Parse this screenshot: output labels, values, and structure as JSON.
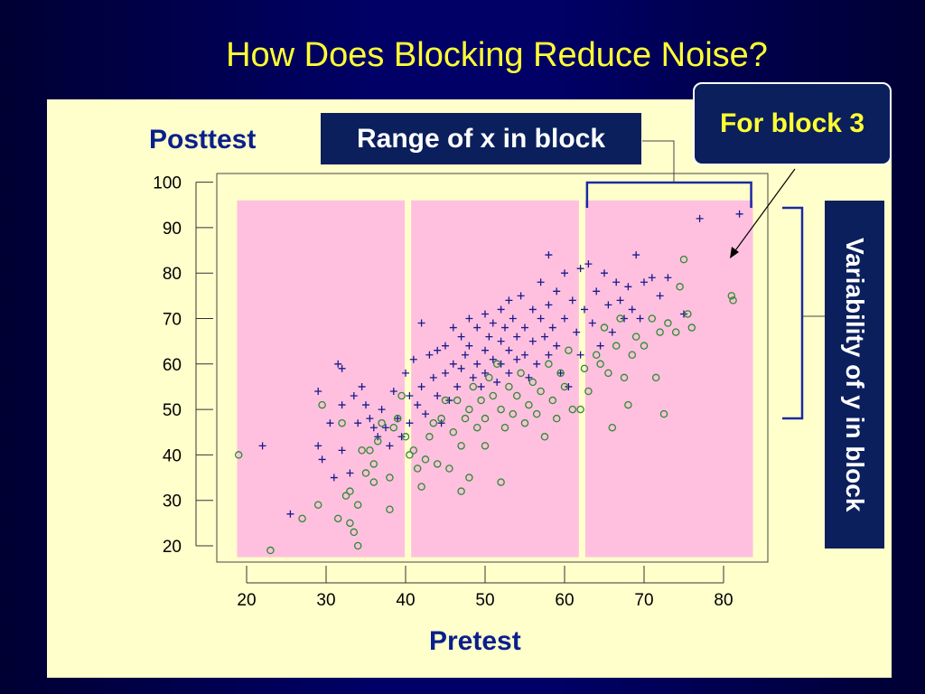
{
  "slide": {
    "title": "How Does Blocking Reduce Noise?",
    "range_label": "Range of x in block",
    "block_label": "For block 3",
    "variability_label": "Variability of y in block"
  },
  "colors": {
    "background": "#000066",
    "title": "#ffff33",
    "panel": "#ffffcc",
    "block_fill": "#ffc0e0",
    "label_box": "#0a1f5c",
    "cross_series": "#1a1a8c",
    "circle_series": "#2e8b2e"
  },
  "chart_data": {
    "type": "scatter",
    "xlabel": "Pretest",
    "ylabel": "Posttest",
    "xlim": [
      17,
      86
    ],
    "ylim": [
      17,
      100
    ],
    "xticks": [
      20,
      30,
      40,
      50,
      60,
      70,
      80
    ],
    "yticks": [
      20,
      30,
      40,
      50,
      60,
      70,
      80,
      90,
      100
    ],
    "blocks": [
      [
        18.8,
        39.9
      ],
      [
        40.7,
        61.8
      ],
      [
        62.6,
        83.7
      ]
    ],
    "block_y_range": [
      17.5,
      96
    ],
    "series": [
      {
        "marker": "cross",
        "points": [
          [
            22,
            42
          ],
          [
            25.5,
            27
          ],
          [
            29,
            54
          ],
          [
            29,
            42
          ],
          [
            29.5,
            39
          ],
          [
            30.5,
            47
          ],
          [
            31,
            35
          ],
          [
            31.5,
            60
          ],
          [
            32,
            59
          ],
          [
            32,
            51
          ],
          [
            32,
            41
          ],
          [
            33,
            36
          ],
          [
            33.5,
            53
          ],
          [
            34,
            47
          ],
          [
            34.5,
            55
          ],
          [
            35,
            51
          ],
          [
            35.5,
            48
          ],
          [
            36,
            46
          ],
          [
            36.5,
            44
          ],
          [
            37,
            50
          ],
          [
            37.5,
            46
          ],
          [
            38,
            42
          ],
          [
            38.5,
            54
          ],
          [
            39,
            48
          ],
          [
            39.5,
            44
          ],
          [
            40,
            58
          ],
          [
            40.5,
            53
          ],
          [
            40.5,
            47
          ],
          [
            41,
            61
          ],
          [
            41.5,
            51
          ],
          [
            42,
            69
          ],
          [
            42,
            55
          ],
          [
            42.5,
            49
          ],
          [
            43,
            62
          ],
          [
            43.5,
            57
          ],
          [
            44,
            63
          ],
          [
            44,
            53
          ],
          [
            44.5,
            47
          ],
          [
            45,
            64
          ],
          [
            45,
            58
          ],
          [
            45.5,
            52
          ],
          [
            46,
            68
          ],
          [
            46,
            60
          ],
          [
            46.5,
            55
          ],
          [
            47,
            66
          ],
          [
            47,
            59
          ],
          [
            47.5,
            62
          ],
          [
            48,
            70
          ],
          [
            48,
            64
          ],
          [
            48.5,
            57
          ],
          [
            49,
            68
          ],
          [
            49,
            60
          ],
          [
            49.5,
            55
          ],
          [
            50,
            71
          ],
          [
            50,
            63
          ],
          [
            50,
            58
          ],
          [
            50.5,
            66
          ],
          [
            51,
            69
          ],
          [
            51,
            61
          ],
          [
            51.5,
            56
          ],
          [
            52,
            72
          ],
          [
            52,
            65
          ],
          [
            52,
            60
          ],
          [
            52.5,
            68
          ],
          [
            53,
            74
          ],
          [
            53,
            63
          ],
          [
            53,
            58
          ],
          [
            53.5,
            70
          ],
          [
            54,
            66
          ],
          [
            54,
            61
          ],
          [
            54.5,
            75
          ],
          [
            55,
            68
          ],
          [
            55,
            62
          ],
          [
            55.5,
            57
          ],
          [
            56,
            72
          ],
          [
            56,
            65
          ],
          [
            56.5,
            60
          ],
          [
            57,
            78
          ],
          [
            57,
            70
          ],
          [
            57.5,
            66
          ],
          [
            58,
            84
          ],
          [
            58,
            73
          ],
          [
            58,
            62
          ],
          [
            58.5,
            68
          ],
          [
            59,
            76
          ],
          [
            59,
            64
          ],
          [
            59.5,
            58
          ],
          [
            60,
            80
          ],
          [
            60,
            70
          ],
          [
            60.5,
            55
          ],
          [
            61,
            74
          ],
          [
            61.5,
            67
          ],
          [
            62,
            81
          ],
          [
            62,
            62
          ],
          [
            62.5,
            72
          ],
          [
            63,
            82
          ],
          [
            63.5,
            69
          ],
          [
            64,
            76
          ],
          [
            64.5,
            64
          ],
          [
            65,
            80
          ],
          [
            65.5,
            73
          ],
          [
            66,
            67
          ],
          [
            66.5,
            78
          ],
          [
            67,
            74
          ],
          [
            67.5,
            70
          ],
          [
            68,
            77
          ],
          [
            68.5,
            72
          ],
          [
            69,
            84
          ],
          [
            69.5,
            70
          ],
          [
            70,
            78
          ],
          [
            71,
            79
          ],
          [
            72,
            75
          ],
          [
            73,
            79
          ],
          [
            75,
            71
          ],
          [
            77,
            92
          ],
          [
            82,
            93
          ]
        ]
      },
      {
        "marker": "circle",
        "points": [
          [
            19,
            40
          ],
          [
            23,
            19
          ],
          [
            27,
            26
          ],
          [
            29,
            29
          ],
          [
            29.5,
            51
          ],
          [
            31.5,
            26
          ],
          [
            32,
            47
          ],
          [
            32.5,
            31
          ],
          [
            33,
            32
          ],
          [
            33,
            25
          ],
          [
            33.5,
            23
          ],
          [
            34,
            20
          ],
          [
            34,
            29
          ],
          [
            34.5,
            41
          ],
          [
            35,
            36
          ],
          [
            35.5,
            41
          ],
          [
            36,
            34
          ],
          [
            36,
            38
          ],
          [
            36.5,
            43
          ],
          [
            37,
            47
          ],
          [
            38,
            28
          ],
          [
            38,
            35
          ],
          [
            38.5,
            46
          ],
          [
            39,
            48
          ],
          [
            39.5,
            53
          ],
          [
            40,
            44
          ],
          [
            40.5,
            40
          ],
          [
            41,
            41
          ],
          [
            41.5,
            37
          ],
          [
            42,
            33
          ],
          [
            42.5,
            39
          ],
          [
            43,
            44
          ],
          [
            43.5,
            47
          ],
          [
            44,
            38
          ],
          [
            44.5,
            48
          ],
          [
            45,
            52
          ],
          [
            45.5,
            37
          ],
          [
            46,
            45
          ],
          [
            46.5,
            52
          ],
          [
            47,
            42
          ],
          [
            47,
            32
          ],
          [
            47.5,
            48
          ],
          [
            48,
            50
          ],
          [
            48,
            35
          ],
          [
            48.5,
            55
          ],
          [
            49,
            46
          ],
          [
            49.5,
            52
          ],
          [
            50,
            48
          ],
          [
            50,
            42
          ],
          [
            50.5,
            57
          ],
          [
            51,
            53
          ],
          [
            51.5,
            60
          ],
          [
            52,
            50
          ],
          [
            52,
            34
          ],
          [
            52.5,
            46
          ],
          [
            53,
            55
          ],
          [
            53.5,
            49
          ],
          [
            54,
            53
          ],
          [
            54.5,
            58
          ],
          [
            55,
            47
          ],
          [
            55.5,
            51
          ],
          [
            56,
            56
          ],
          [
            56.5,
            49
          ],
          [
            57,
            54
          ],
          [
            57.5,
            44
          ],
          [
            58,
            60
          ],
          [
            58.5,
            52
          ],
          [
            59,
            48
          ],
          [
            59.5,
            58
          ],
          [
            60,
            55
          ],
          [
            60.5,
            63
          ],
          [
            61,
            50
          ],
          [
            62,
            50
          ],
          [
            62.5,
            59
          ],
          [
            63,
            54
          ],
          [
            64,
            62
          ],
          [
            64.5,
            60
          ],
          [
            65,
            68
          ],
          [
            65.5,
            58
          ],
          [
            66,
            46
          ],
          [
            66.5,
            64
          ],
          [
            67,
            70
          ],
          [
            67.5,
            57
          ],
          [
            68,
            51
          ],
          [
            68.5,
            62
          ],
          [
            69,
            66
          ],
          [
            70,
            64
          ],
          [
            71,
            70
          ],
          [
            71.5,
            57
          ],
          [
            72,
            67
          ],
          [
            72.5,
            49
          ],
          [
            73,
            69
          ],
          [
            74,
            67
          ],
          [
            74.5,
            77
          ],
          [
            75,
            83
          ],
          [
            75.5,
            71
          ],
          [
            76,
            68
          ],
          [
            81,
            75
          ],
          [
            81.2,
            74
          ]
        ]
      }
    ]
  }
}
